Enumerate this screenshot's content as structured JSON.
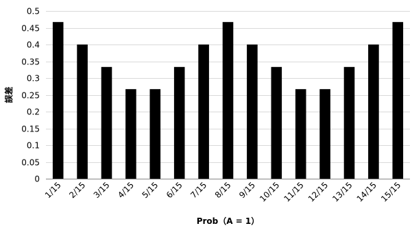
{
  "chart_data": {
    "type": "bar",
    "categories": [
      "1/15",
      "2/15",
      "3/15",
      "4/15",
      "5/15",
      "6/15",
      "7/15",
      "8/15",
      "9/15",
      "10/15",
      "11/15",
      "12/15",
      "13/15",
      "14/15",
      "15/15"
    ],
    "values": [
      0.467,
      0.4,
      0.333,
      0.267,
      0.267,
      0.333,
      0.4,
      0.467,
      0.4,
      0.333,
      0.267,
      0.267,
      0.333,
      0.4,
      0.467
    ],
    "title": "",
    "xlabel": "Prob（A = 1）",
    "ylabel": "誤差",
    "ylim": [
      0,
      0.5
    ],
    "yticks": [
      "0",
      "0.05",
      "0.1",
      "0.15",
      "0.2",
      "0.25",
      "0.3",
      "0.35",
      "0.4",
      "0.45",
      "0.5"
    ],
    "grid": true,
    "legend": "none",
    "colors": {
      "bar": "#000000",
      "grid": "#d9d9d9",
      "axis": "#868686"
    }
  }
}
